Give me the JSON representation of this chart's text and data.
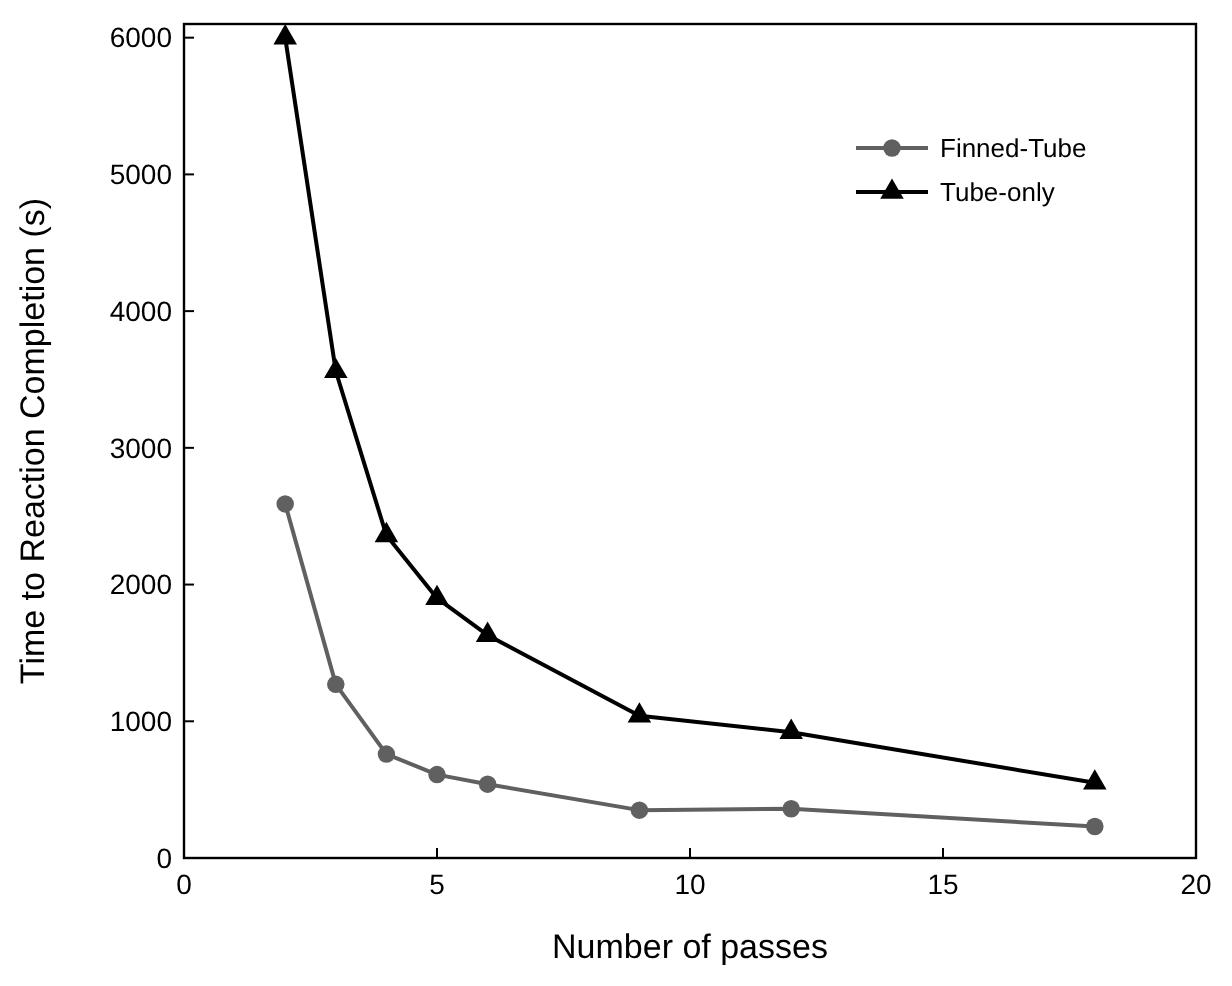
{
  "chart_data": {
    "type": "line",
    "xlabel": "Number of passes",
    "ylabel": "Time to Reaction Completion (s)",
    "x": [
      2,
      3,
      4,
      5,
      6,
      9,
      12,
      18
    ],
    "series": [
      {
        "name": "Finned-Tube",
        "color": "#606060",
        "marker": "circle",
        "values": [
          2590,
          1270,
          760,
          610,
          540,
          350,
          360,
          230
        ]
      },
      {
        "name": "Tube-only",
        "color": "#000000",
        "marker": "triangle",
        "values": [
          6000,
          3560,
          2360,
          1900,
          1630,
          1040,
          920,
          550
        ]
      }
    ],
    "xlim": [
      0,
      20
    ],
    "xticks": [
      0,
      5,
      10,
      15,
      20
    ],
    "ylim": [
      0,
      6100
    ],
    "yticks": [
      0,
      1000,
      2000,
      3000,
      4000,
      5000,
      6000
    ],
    "grid": false,
    "legend": "top right",
    "line_style": "solid"
  }
}
